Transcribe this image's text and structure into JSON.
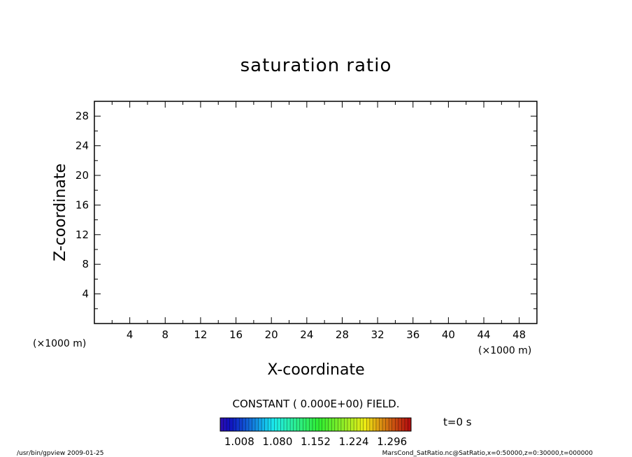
{
  "chart_data": {
    "type": "heatmap",
    "title": "saturation ratio",
    "xlabel": "X-coordinate",
    "ylabel": "Z-coordinate",
    "x_unit": "(×1000 m)",
    "y_unit": "(×1000 m)",
    "xlim": [
      0,
      50
    ],
    "ylim": [
      0,
      30
    ],
    "x_ticks": [
      4,
      8,
      12,
      16,
      20,
      24,
      28,
      32,
      36,
      40,
      44,
      48
    ],
    "y_ticks": [
      4,
      8,
      12,
      16,
      20,
      24,
      28
    ],
    "x_minor_step": 2,
    "y_minor_step": 2,
    "field_note": "CONSTANT ( 0.000E+00) FIELD.",
    "time_label": "t=0 s",
    "colorbar": {
      "min": 0.972,
      "max": 1.332,
      "levels": 60,
      "tick_labels": [
        "1.008",
        "1.080",
        "1.152",
        "1.224",
        "1.296"
      ],
      "tick_values": [
        1.008,
        1.08,
        1.152,
        1.224,
        1.296
      ]
    },
    "grid": false
  },
  "footer": {
    "left": "/usr/bin/gpview   2009-01-25",
    "right": "MarsCond_SatRatio.nc@SatRatio,x=0:50000,z=0:30000,t=000000"
  }
}
